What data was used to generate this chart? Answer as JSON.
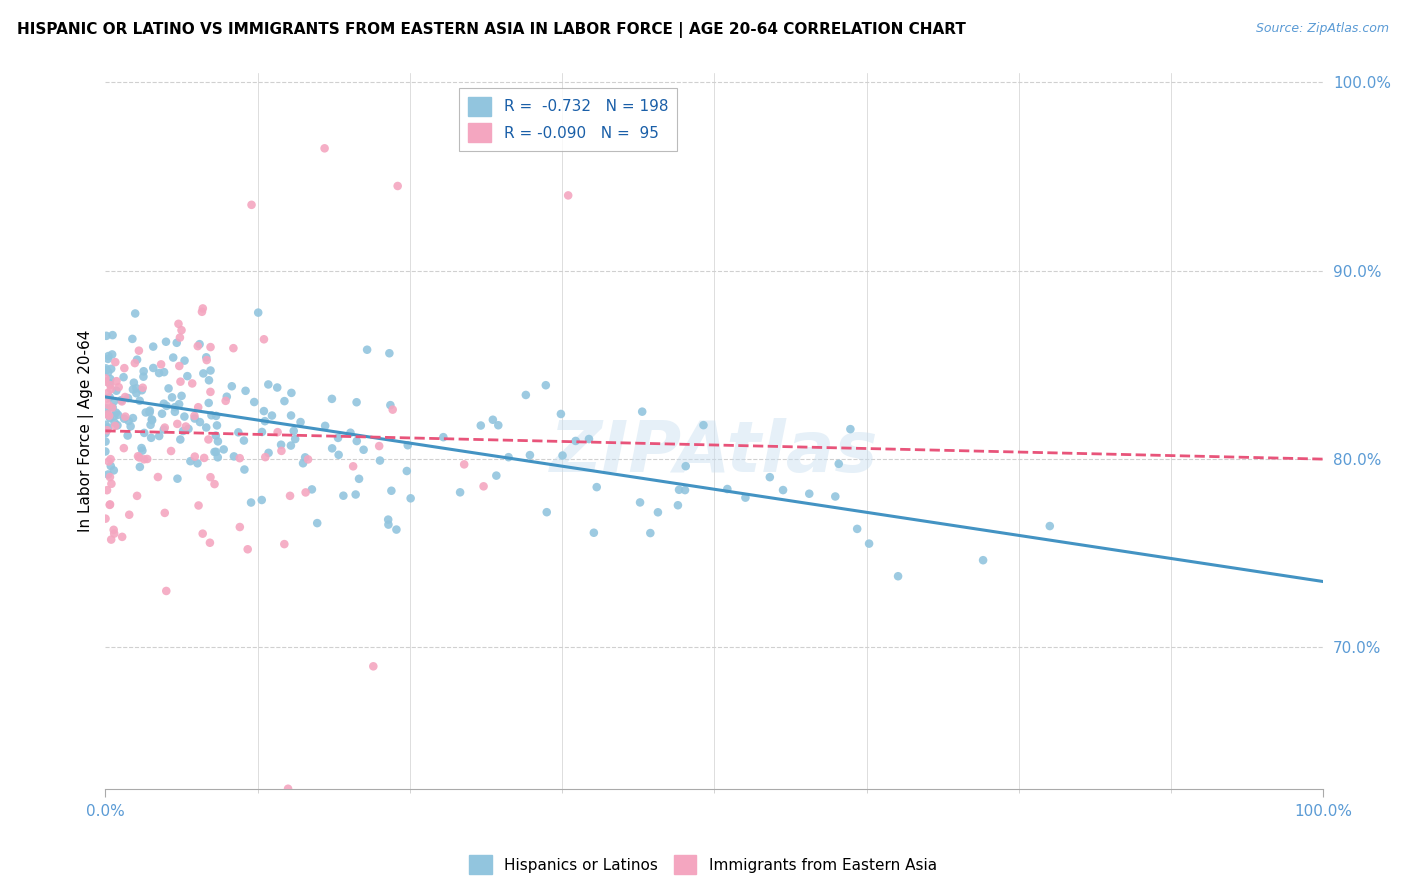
{
  "title": "HISPANIC OR LATINO VS IMMIGRANTS FROM EASTERN ASIA IN LABOR FORCE | AGE 20-64 CORRELATION CHART",
  "source": "Source: ZipAtlas.com",
  "ylabel": "In Labor Force | Age 20-64",
  "xmin": 0.0,
  "xmax": 1.0,
  "ymin": 0.625,
  "ymax": 1.005,
  "ytick_labels": [
    "70.0%",
    "80.0%",
    "90.0%",
    "100.0%"
  ],
  "ytick_values": [
    0.7,
    0.8,
    0.9,
    1.0
  ],
  "blue_R": -0.732,
  "blue_N": 198,
  "pink_R": -0.09,
  "pink_N": 95,
  "blue_color": "#92c5de",
  "pink_color": "#f4a6c0",
  "blue_line_color": "#4393c3",
  "pink_line_color": "#e8547a",
  "watermark": "ZIPAtlas",
  "blue_trend_x0": 0.0,
  "blue_trend_y0": 0.833,
  "blue_trend_x1": 1.0,
  "blue_trend_y1": 0.735,
  "pink_trend_x0": 0.0,
  "pink_trend_y0": 0.815,
  "pink_trend_x1": 1.0,
  "pink_trend_y1": 0.8
}
